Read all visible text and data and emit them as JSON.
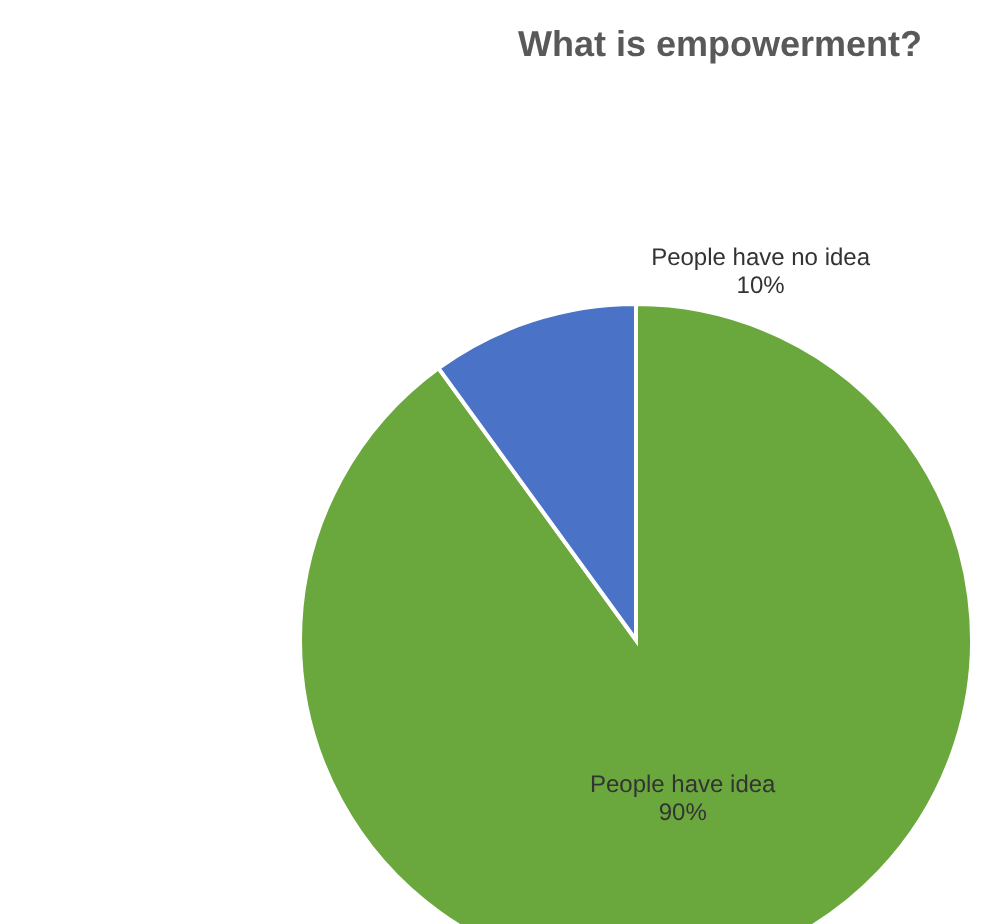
{
  "chart_data": {
    "type": "pie",
    "title": "What is empowerment?",
    "categories": [
      "People have idea",
      "People have no idea"
    ],
    "values": [
      90,
      10
    ],
    "value_labels": [
      "90%",
      "10%"
    ],
    "colors": [
      "#6aa83e",
      "#4a72c6"
    ],
    "data_labels": true
  }
}
